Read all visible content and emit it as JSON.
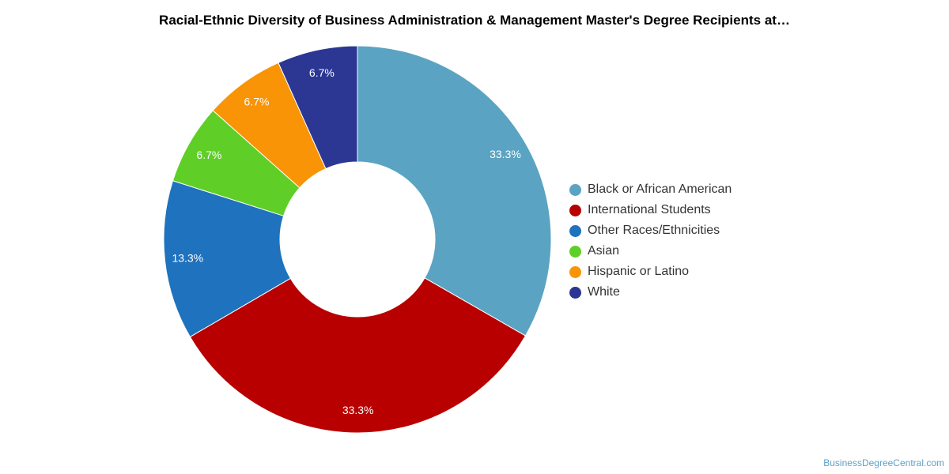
{
  "chart_data": {
    "type": "pie",
    "title": "Racial-Ethnic Diversity of Business Administration & Management Master's Degree Recipients at…",
    "donut": true,
    "legend_position": "right",
    "slices": [
      {
        "label": "Black or African American",
        "value": 33.3,
        "display": "33.3%",
        "color": "#5ba3c2"
      },
      {
        "label": "International Students",
        "value": 33.3,
        "display": "33.3%",
        "color": "#b80000"
      },
      {
        "label": "Other Races/Ethnicities",
        "value": 13.3,
        "display": "13.3%",
        "color": "#1f72bd"
      },
      {
        "label": "Asian",
        "value": 6.7,
        "display": "6.7%",
        "color": "#5fcf27"
      },
      {
        "label": "Hispanic or Latino",
        "value": 6.7,
        "display": "6.7%",
        "color": "#f89406"
      },
      {
        "label": "White",
        "value": 6.7,
        "display": "6.7%",
        "color": "#2b3793"
      }
    ]
  },
  "credit": "BusinessDegreeCentral.com"
}
